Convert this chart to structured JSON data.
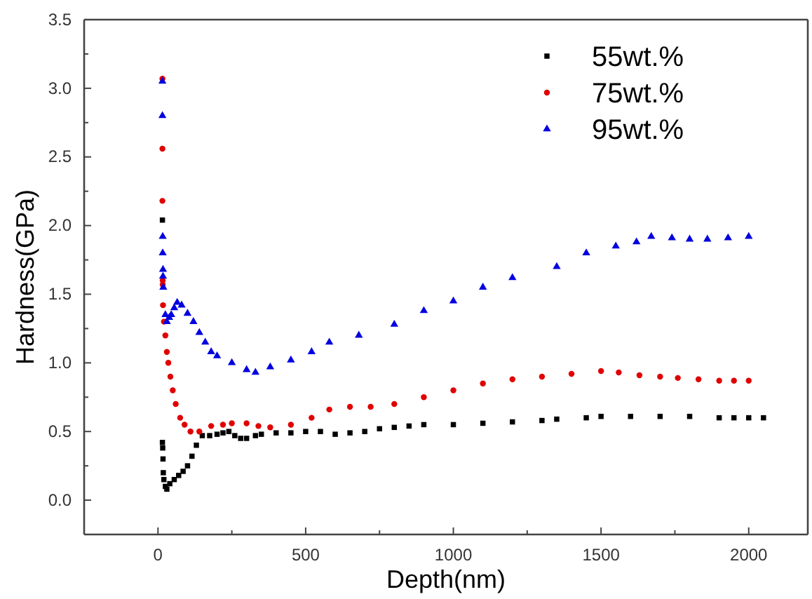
{
  "chart_data": {
    "type": "scatter",
    "xlabel": "Depth(nm)",
    "ylabel": "Hardness(GPa)",
    "xlim": [
      -250,
      2200
    ],
    "ylim": [
      -0.25,
      3.5
    ],
    "xticks": [
      0,
      {
        "value": 250,
        "label": null
      },
      500,
      {
        "value": 750,
        "label": null
      },
      1000,
      {
        "value": 1250,
        "label": null
      },
      1500,
      {
        "value": 1750,
        "label": null
      },
      2000
    ],
    "yticks": [
      {
        "value": 0,
        "label": "0.0"
      },
      {
        "value": 0.25,
        "label": null
      },
      {
        "value": 0.5,
        "label": "0.5"
      },
      {
        "value": 0.75,
        "label": null
      },
      {
        "value": 1,
        "label": "1.0"
      },
      {
        "value": 1.25,
        "label": null
      },
      {
        "value": 1.5,
        "label": "1.5"
      },
      {
        "value": 1.75,
        "label": null
      },
      {
        "value": 2,
        "label": "2.0"
      },
      {
        "value": 2.25,
        "label": null
      },
      {
        "value": 2.5,
        "label": "2.5"
      },
      {
        "value": 2.75,
        "label": null
      },
      {
        "value": 3,
        "label": "3.0"
      },
      {
        "value": 3.25,
        "label": null
      },
      {
        "value": 3.5,
        "label": "3.5"
      }
    ],
    "legend": "top right",
    "series": [
      {
        "name": "55wt.%",
        "color": "#000000",
        "marker": "square",
        "x": [
          15,
          15,
          16,
          17,
          18,
          20,
          25,
          30,
          40,
          55,
          70,
          85,
          100,
          115,
          130,
          150,
          175,
          200,
          220,
          240,
          260,
          280,
          300,
          330,
          350,
          400,
          450,
          500,
          550,
          600,
          650,
          700,
          750,
          800,
          850,
          900,
          1000,
          1100,
          1200,
          1300,
          1350,
          1450,
          1500,
          1600,
          1700,
          1800,
          1900,
          1950,
          2000,
          2050
        ],
        "values": [
          2.04,
          0.42,
          0.38,
          0.3,
          0.2,
          0.15,
          0.1,
          0.08,
          0.12,
          0.15,
          0.18,
          0.21,
          0.25,
          0.32,
          0.4,
          0.47,
          0.47,
          0.48,
          0.49,
          0.5,
          0.47,
          0.45,
          0.45,
          0.47,
          0.48,
          0.49,
          0.49,
          0.5,
          0.5,
          0.48,
          0.49,
          0.5,
          0.52,
          0.53,
          0.54,
          0.55,
          0.55,
          0.56,
          0.57,
          0.58,
          0.59,
          0.6,
          0.61,
          0.61,
          0.61,
          0.61,
          0.6,
          0.6,
          0.6,
          0.6
        ]
      },
      {
        "name": "75wt.%",
        "color": "#e00000",
        "marker": "circle",
        "x": [
          15,
          15,
          15,
          16,
          16,
          17,
          20,
          25,
          30,
          35,
          42,
          50,
          60,
          75,
          90,
          110,
          140,
          180,
          220,
          250,
          300,
          340,
          380,
          450,
          520,
          580,
          650,
          720,
          800,
          900,
          1000,
          1100,
          1200,
          1300,
          1400,
          1500,
          1560,
          1630,
          1700,
          1760,
          1830,
          1900,
          1950,
          2000
        ],
        "values": [
          3.07,
          2.56,
          2.18,
          1.6,
          1.57,
          1.42,
          1.3,
          1.2,
          1.08,
          1.0,
          0.9,
          0.8,
          0.7,
          0.6,
          0.55,
          0.5,
          0.5,
          0.54,
          0.55,
          0.56,
          0.56,
          0.54,
          0.53,
          0.55,
          0.6,
          0.66,
          0.68,
          0.68,
          0.7,
          0.75,
          0.8,
          0.85,
          0.88,
          0.9,
          0.92,
          0.94,
          0.93,
          0.91,
          0.9,
          0.89,
          0.88,
          0.87,
          0.87,
          0.87
        ]
      },
      {
        "name": "95wt.%",
        "color": "#0000e0",
        "marker": "triangle",
        "x": [
          15,
          15,
          16,
          16,
          17,
          17,
          18,
          25,
          30,
          38,
          45,
          55,
          65,
          80,
          100,
          120,
          140,
          160,
          180,
          200,
          250,
          300,
          330,
          380,
          450,
          520,
          580,
          680,
          800,
          900,
          1000,
          1100,
          1200,
          1350,
          1450,
          1550,
          1620,
          1670,
          1740,
          1800,
          1860,
          1930,
          2000
        ],
        "values": [
          3.05,
          2.8,
          1.92,
          1.8,
          1.68,
          1.63,
          1.55,
          1.35,
          1.3,
          1.33,
          1.35,
          1.4,
          1.44,
          1.42,
          1.36,
          1.3,
          1.22,
          1.15,
          1.08,
          1.05,
          1.0,
          0.95,
          0.93,
          0.97,
          1.02,
          1.08,
          1.15,
          1.2,
          1.28,
          1.38,
          1.45,
          1.55,
          1.62,
          1.7,
          1.8,
          1.85,
          1.88,
          1.92,
          1.91,
          1.9,
          1.9,
          1.91,
          1.92
        ]
      }
    ]
  }
}
